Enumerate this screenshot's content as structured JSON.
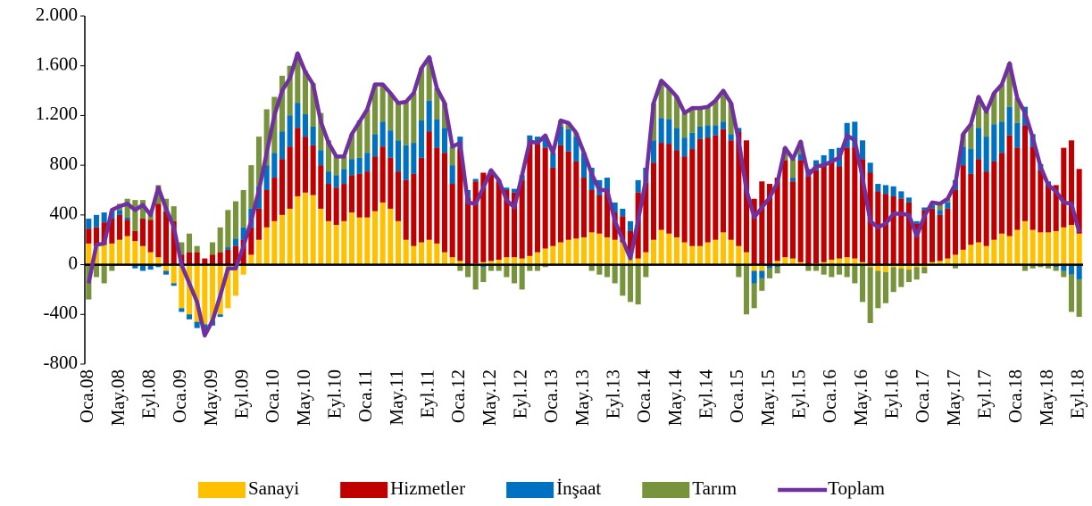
{
  "chart_data": {
    "type": "bar",
    "stacked": true,
    "categories": [
      "Oca.08",
      null,
      null,
      null,
      "May.08",
      null,
      null,
      null,
      "Eyl.08",
      null,
      null,
      null,
      "Oca.09",
      null,
      null,
      null,
      "May.09",
      null,
      null,
      null,
      "Eyl.09",
      null,
      null,
      null,
      "Oca.10",
      null,
      null,
      null,
      "May.10",
      null,
      null,
      null,
      "Eyl.10",
      null,
      null,
      null,
      "Oca.11",
      null,
      null,
      null,
      "May.11",
      null,
      null,
      null,
      "Eyl.11",
      null,
      null,
      null,
      "Oca.12",
      null,
      null,
      null,
      "May.12",
      null,
      null,
      null,
      "Eyl.12",
      null,
      null,
      null,
      "Oca.13",
      null,
      null,
      null,
      "May.13",
      null,
      null,
      null,
      "Eyl.13",
      null,
      null,
      null,
      "Oca.14",
      null,
      null,
      null,
      "May.14",
      null,
      null,
      null,
      "Eyl.14",
      null,
      null,
      null,
      "Oca.15",
      null,
      null,
      null,
      "May.15",
      null,
      null,
      null,
      "Eyl.15",
      null,
      null,
      null,
      "Oca.16",
      null,
      null,
      null,
      "May.16",
      null,
      null,
      null,
      "Eyl.16",
      null,
      null,
      null,
      "Oca.17",
      null,
      null,
      null,
      "May.17",
      null,
      null,
      null,
      "Eyl.17",
      null,
      null,
      null,
      "Oca.18",
      null,
      null,
      null,
      "May.18",
      null,
      null,
      null,
      "Eyl.18"
    ],
    "series": [
      {
        "name": "Sanayi",
        "color": "#FFC000",
        "type": "bar",
        "values": [
          170,
          150,
          160,
          170,
          200,
          230,
          190,
          150,
          100,
          60,
          -50,
          -150,
          -350,
          -400,
          -460,
          -480,
          -450,
          -400,
          -350,
          -250,
          -80,
          80,
          200,
          300,
          350,
          400,
          450,
          550,
          580,
          560,
          450,
          350,
          320,
          350,
          420,
          380,
          380,
          430,
          500,
          450,
          350,
          200,
          150,
          180,
          200,
          170,
          100,
          60,
          30,
          0,
          10,
          20,
          30,
          40,
          60,
          60,
          50,
          70,
          100,
          130,
          150,
          180,
          200,
          210,
          220,
          260,
          250,
          220,
          200,
          180,
          100,
          50,
          100,
          200,
          280,
          250,
          220,
          180,
          150,
          150,
          180,
          200,
          260,
          200,
          150,
          100,
          -50,
          -50,
          0,
          30,
          60,
          50,
          20,
          0,
          10,
          20,
          40,
          50,
          60,
          50,
          20,
          -20,
          -50,
          -60,
          -20,
          -30,
          -40,
          -20,
          -20,
          20,
          30,
          50,
          80,
          120,
          160,
          180,
          150,
          200,
          250,
          230,
          280,
          350,
          280,
          260,
          260,
          270,
          300,
          320,
          250
        ]
      },
      {
        "name": "Hizmetler",
        "color": "#C00000",
        "type": "bar",
        "values": [
          120,
          150,
          180,
          200,
          200,
          130,
          80,
          220,
          260,
          430,
          430,
          350,
          80,
          100,
          100,
          50,
          80,
          100,
          120,
          150,
          200,
          220,
          250,
          300,
          350,
          450,
          500,
          550,
          450,
          400,
          350,
          300,
          300,
          300,
          300,
          350,
          370,
          440,
          450,
          410,
          400,
          480,
          580,
          680,
          870,
          770,
          800,
          590,
          900,
          540,
          660,
          720,
          730,
          630,
          540,
          520,
          630,
          920,
          870,
          810,
          630,
          780,
          710,
          620,
          480,
          340,
          310,
          380,
          220,
          210,
          170,
          530,
          560,
          620,
          700,
          720,
          700,
          690,
          780,
          860,
          840,
          840,
          830,
          800,
          920,
          900,
          530,
          670,
          650,
          670,
          780,
          620,
          820,
          710,
          750,
          780,
          790,
          740,
          880,
          900,
          830,
          740,
          590,
          570,
          550,
          530,
          500,
          330,
          440,
          430,
          370,
          400,
          520,
          680,
          570,
          670,
          600,
          630,
          650,
          810,
          660,
          770,
          670,
          500,
          390,
          370,
          640,
          680,
          520
        ]
      },
      {
        "name": "İnşaat",
        "color": "#0070C0",
        "type": "bar",
        "values": [
          80,
          100,
          80,
          60,
          40,
          20,
          -30,
          -50,
          -40,
          -20,
          -30,
          -20,
          -30,
          -40,
          -50,
          -60,
          -40,
          -20,
          20,
          60,
          100,
          150,
          180,
          200,
          200,
          220,
          250,
          200,
          180,
          150,
          120,
          100,
          100,
          120,
          130,
          130,
          150,
          180,
          200,
          220,
          250,
          280,
          250,
          300,
          250,
          230,
          200,
          150,
          100,
          60,
          20,
          -20,
          0,
          10,
          20,
          30,
          40,
          50,
          60,
          100,
          120,
          150,
          180,
          200,
          200,
          180,
          120,
          100,
          80,
          60,
          80,
          100,
          120,
          180,
          200,
          200,
          180,
          150,
          130,
          100,
          100,
          80,
          60,
          50,
          30,
          0,
          -100,
          -60,
          -30,
          -20,
          0,
          30,
          50,
          60,
          80,
          80,
          100,
          150,
          200,
          200,
          150,
          80,
          60,
          70,
          80,
          60,
          40,
          20,
          20,
          30,
          40,
          50,
          80,
          150,
          200,
          250,
          280,
          300,
          250,
          230,
          200,
          150,
          100,
          50,
          20,
          -20,
          -50,
          -80,
          -120
        ]
      },
      {
        "name": "Tarım",
        "color": "#77933C",
        "type": "bar",
        "values": [
          -280,
          -100,
          -150,
          -50,
          50,
          150,
          250,
          150,
          80,
          150,
          100,
          120,
          100,
          150,
          50,
          -20,
          100,
          200,
          300,
          300,
          300,
          350,
          400,
          450,
          450,
          450,
          400,
          400,
          350,
          350,
          300,
          250,
          150,
          100,
          200,
          300,
          350,
          400,
          300,
          300,
          300,
          350,
          400,
          420,
          350,
          250,
          200,
          150,
          -50,
          -100,
          -200,
          -120,
          -50,
          -50,
          -100,
          -150,
          -200,
          -50,
          -50,
          -20,
          0,
          50,
          50,
          30,
          0,
          -50,
          -80,
          -100,
          -150,
          -250,
          -300,
          -320,
          -100,
          300,
          300,
          250,
          250,
          200,
          200,
          150,
          150,
          200,
          250,
          250,
          -100,
          -400,
          -200,
          -100,
          -80,
          -50,
          100,
          150,
          100,
          -50,
          -50,
          -80,
          -100,
          -80,
          -100,
          -150,
          -300,
          -450,
          -300,
          -250,
          -200,
          -150,
          -100,
          -100,
          -50,
          20,
          50,
          30,
          -30,
          100,
          200,
          250,
          200,
          250,
          300,
          350,
          200,
          -50,
          -30,
          -20,
          -30,
          -30,
          -50,
          -300,
          -300
        ]
      },
      {
        "name": "Toplam",
        "color": "#7030A0",
        "type": "line",
        "values": [
          -150,
          160,
          170,
          440,
          470,
          490,
          440,
          480,
          400,
          620,
          450,
          300,
          0,
          -150,
          -300,
          -570,
          -450,
          -250,
          -30,
          -30,
          150,
          350,
          600,
          900,
          1200,
          1400,
          1500,
          1700,
          1550,
          1450,
          1150,
          980,
          870,
          870,
          1050,
          1150,
          1250,
          1450,
          1450,
          1380,
          1300,
          1310,
          1380,
          1580,
          1670,
          1420,
          1300,
          950,
          980,
          500,
          490,
          620,
          760,
          680,
          520,
          460,
          720,
          990,
          980,
          1040,
          900,
          1160,
          1140,
          1060,
          900,
          730,
          600,
          600,
          350,
          200,
          50,
          360,
          680,
          1300,
          1480,
          1420,
          1350,
          1220,
          1260,
          1260,
          1270,
          1320,
          1400,
          1300,
          1000,
          600,
          380,
          460,
          540,
          660,
          940,
          850,
          990,
          720,
          790,
          800,
          830,
          860,
          1040,
          1000,
          700,
          350,
          300,
          330,
          410,
          410,
          400,
          230,
          390,
          500,
          490,
          530,
          650,
          1050,
          1130,
          1350,
          1230,
          1380,
          1450,
          1620,
          1340,
          1220,
          1020,
          790,
          640,
          590,
          500,
          490,
          260
        ]
      }
    ],
    "ylim": [
      -800,
      2000
    ],
    "yticks": [
      -800,
      -400,
      0,
      400,
      800,
      {
        "value": 1200,
        "label": "1.200"
      },
      {
        "value": 1600,
        "label": "1.600"
      },
      {
        "value": 2000,
        "label": "2.000"
      }
    ],
    "legend": "bottom"
  }
}
